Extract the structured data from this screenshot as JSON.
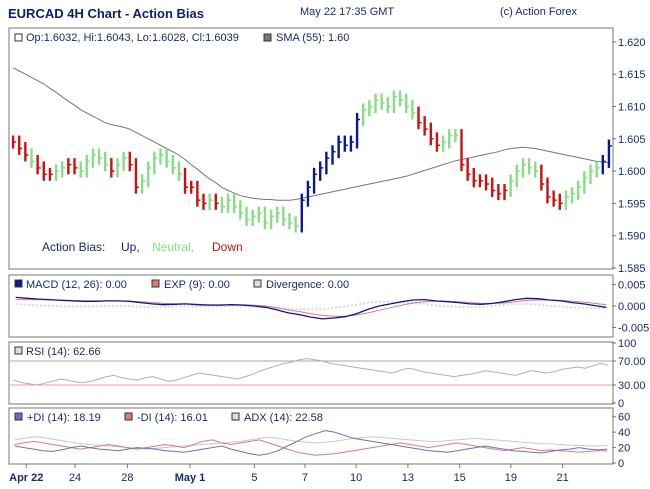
{
  "header": {
    "title": "EURCAD 4H Chart - Action Bias",
    "timestamp": "May 22 17:35 GMT",
    "copyright": "(c) Action Forex"
  },
  "chart_data": [
    {
      "type": "bar",
      "panel": "price",
      "ohlc_label": "Op:1.6032, Hi:1.6043, Lo:1.6028, Cl:1.6039",
      "sma_label": "SMA (55): 1.60",
      "ylim": [
        1.585,
        1.622
      ],
      "ticks": [
        "1.620",
        "1.615",
        "1.610",
        "1.605",
        "1.600",
        "1.595",
        "1.590",
        "1.585"
      ],
      "tick_values": [
        1.62,
        1.615,
        1.61,
        1.605,
        1.6,
        1.595,
        1.59,
        1.585
      ],
      "legend": {
        "label": "Action Bias:",
        "up": "Up,",
        "neutral": "Neutral,",
        "down": "Down"
      },
      "colors": {
        "up": "#0a1a8c",
        "neutral": "#88dd88",
        "down": "#cc1111",
        "sma": "#777777"
      },
      "bias": [
        "D",
        "D",
        "D",
        "N",
        "D",
        "D",
        "D",
        "N",
        "N",
        "D",
        "D",
        "N",
        "N",
        "N",
        "N",
        "N",
        "D",
        "N",
        "N",
        "D",
        "D",
        "N",
        "N",
        "N",
        "N",
        "N",
        "N",
        "N",
        "D",
        "D",
        "D",
        "D",
        "N",
        "D",
        "N",
        "N",
        "N",
        "N",
        "N",
        "N",
        "N",
        "N",
        "N",
        "N",
        "N",
        "N",
        "N",
        "U",
        "U",
        "U",
        "U",
        "U",
        "U",
        "U",
        "U",
        "U",
        "U",
        "N",
        "N",
        "N",
        "N",
        "N",
        "N",
        "N",
        "N",
        "N",
        "D",
        "D",
        "D",
        "D",
        "N",
        "N",
        "N",
        "D",
        "D",
        "D",
        "D",
        "D",
        "D",
        "D",
        "D",
        "N",
        "N",
        "N",
        "N",
        "N",
        "D",
        "D",
        "D",
        "D",
        "N",
        "N",
        "N",
        "N",
        "N",
        "N",
        "U",
        "U"
      ],
      "closes": [
        1.6045,
        1.6035,
        1.6025,
        1.6015,
        1.6005,
        1.5995,
        1.5995,
        1.6,
        1.6005,
        1.601,
        1.6005,
        1.6,
        1.6015,
        1.6025,
        1.602,
        1.601,
        1.6,
        1.601,
        1.602,
        1.601,
        1.5975,
        1.5985,
        1.6005,
        1.602,
        1.6025,
        1.6015,
        1.6005,
        1.5995,
        1.5975,
        1.5975,
        1.5955,
        1.595,
        1.5955,
        1.595,
        1.5945,
        1.5955,
        1.5945,
        1.5935,
        1.5925,
        1.593,
        1.5935,
        1.592,
        1.593,
        1.5935,
        1.5925,
        1.592,
        1.5915,
        1.5955,
        1.5975,
        1.5995,
        1.6005,
        1.602,
        1.603,
        1.6045,
        1.604,
        1.6045,
        1.608,
        1.6095,
        1.61,
        1.611,
        1.6105,
        1.61,
        1.6115,
        1.611,
        1.61,
        1.609,
        1.6075,
        1.6065,
        1.605,
        1.604,
        1.6045,
        1.6055,
        1.6055,
        1.601,
        1.5995,
        1.5985,
        1.5985,
        1.598,
        1.597,
        1.5965,
        1.597,
        1.5985,
        1.6,
        1.601,
        1.6005,
        1.6,
        1.598,
        1.596,
        1.5955,
        1.595,
        1.596,
        1.5965,
        1.5975,
        1.599,
        1.6,
        1.6005,
        1.6015,
        1.6039
      ],
      "sma": [
        1.616,
        1.6155,
        1.615,
        1.6145,
        1.614,
        1.6135,
        1.6128,
        1.6122,
        1.6115,
        1.6108,
        1.6102,
        1.6095,
        1.609,
        1.6085,
        1.608,
        1.6075,
        1.6072,
        1.607,
        1.6068,
        1.6065,
        1.606,
        1.6055,
        1.605,
        1.6045,
        1.604,
        1.6035,
        1.603,
        1.6025,
        1.6018,
        1.601,
        1.6003,
        1.5995,
        1.5988,
        1.5982,
        1.5975,
        1.597,
        1.5966,
        1.5962,
        1.596,
        1.5958,
        1.5957,
        1.5956,
        1.5956,
        1.5955,
        1.5955,
        1.5955,
        1.5956,
        1.5958,
        1.596,
        1.5962,
        1.5964,
        1.5966,
        1.5968,
        1.597,
        1.5972,
        1.5974,
        1.5976,
        1.5978,
        1.598,
        1.5982,
        1.5984,
        1.5986,
        1.5988,
        1.599,
        1.5992,
        1.5995,
        1.5998,
        1.6001,
        1.6004,
        1.6007,
        1.601,
        1.6013,
        1.6016,
        1.6018,
        1.602,
        1.6022,
        1.6024,
        1.6026,
        1.6028,
        1.603,
        1.6033,
        1.6035,
        1.6036,
        1.6037,
        1.6036,
        1.6035,
        1.6033,
        1.6031,
        1.6029,
        1.6027,
        1.6025,
        1.6023,
        1.6021,
        1.6019,
        1.6017,
        1.6015,
        1.6014,
        1.6013
      ]
    },
    {
      "type": "line",
      "panel": "macd",
      "labels": {
        "macd": "MACD (12, 26): 0.00",
        "exp": "EXP (9): 0.00",
        "div": "Divergence: 0.00"
      },
      "ylim": [
        -0.007,
        0.007
      ],
      "ticks": [
        "0.005",
        "0.000",
        "-0.005"
      ],
      "tick_values": [
        0.005,
        0.0,
        -0.005
      ],
      "colors": {
        "macd": "#0a1a8c",
        "exp": "#e07a7a",
        "div": "#d8d8d8"
      },
      "macd": [
        0.002,
        0.0018,
        0.0016,
        0.0015,
        0.0013,
        0.0012,
        0.0011,
        0.0011,
        0.0012,
        0.0012,
        0.0011,
        0.0008,
        0.0005,
        0.0003,
        0.0004,
        0.0005,
        0.0003,
        0.0002,
        0.0002,
        0.0003,
        0.0002,
        0.0,
        -0.0003,
        -0.0009,
        -0.0016,
        -0.002,
        -0.0026,
        -0.003,
        -0.0028,
        -0.0025,
        -0.0018,
        -0.0008,
        0.0,
        0.0005,
        0.001,
        0.0014,
        0.0015,
        0.0012,
        0.001,
        0.0008,
        0.0005,
        0.0004,
        0.0006,
        0.001,
        0.0015,
        0.0018,
        0.0017,
        0.0014,
        0.0012,
        0.0008,
        0.0005,
        0.0001,
        -0.0003
      ],
      "exp": [
        0.0015,
        0.0015,
        0.0015,
        0.0014,
        0.0014,
        0.0013,
        0.0012,
        0.0012,
        0.0012,
        0.0012,
        0.0011,
        0.001,
        0.0008,
        0.0006,
        0.0005,
        0.0005,
        0.0004,
        0.0003,
        0.0003,
        0.0003,
        0.0003,
        0.0002,
        0.0,
        -0.0004,
        -0.0009,
        -0.0013,
        -0.0018,
        -0.0022,
        -0.0024,
        -0.0024,
        -0.0021,
        -0.0016,
        -0.001,
        -0.0004,
        0.0002,
        0.0007,
        0.001,
        0.0011,
        0.0011,
        0.001,
        0.0008,
        0.0006,
        0.0006,
        0.0007,
        0.001,
        0.0013,
        0.0014,
        0.0014,
        0.0013,
        0.0011,
        0.0009,
        0.0006,
        0.0003
      ],
      "div": [
        0.0005,
        0.0003,
        0.0001,
        0.0001,
        -0.0001,
        -0.0001,
        -0.0001,
        -0.0001,
        0.0,
        0.0,
        0.0,
        -0.0002,
        -0.0003,
        -0.0003,
        -0.0001,
        0.0,
        -0.0001,
        -0.0001,
        -0.0001,
        0.0,
        -0.0001,
        -0.0002,
        -0.0003,
        -0.0005,
        -0.0007,
        -0.0007,
        -0.0008,
        -0.0008,
        -0.0004,
        -0.0001,
        0.0003,
        0.0008,
        0.001,
        0.0009,
        0.0008,
        0.0007,
        0.0005,
        0.0001,
        -0.0001,
        -0.0002,
        -0.0003,
        -0.0002,
        0.0,
        0.0003,
        0.0005,
        0.0005,
        0.0003,
        0.0,
        -0.0001,
        -0.0003,
        -0.0004,
        -0.0005,
        -0.0006
      ]
    },
    {
      "type": "line",
      "panel": "rsi",
      "label": "RSI (14): 62.66",
      "ylim": [
        0,
        100
      ],
      "ticks": [
        "100",
        "70.00",
        "30.00",
        "0"
      ],
      "tick_values": [
        100,
        70,
        30,
        0
      ],
      "levels": [
        70,
        30
      ],
      "colors": {
        "rsi": "#b0b0b0",
        "rsi_low": "#e07a7a",
        "level": "#e07a7a"
      },
      "rsi": [
        38,
        34,
        32,
        30,
        33,
        36,
        40,
        38,
        35,
        34,
        36,
        40,
        44,
        46,
        42,
        40,
        38,
        42,
        44,
        40,
        36,
        38,
        42,
        46,
        50,
        48,
        46,
        44,
        42,
        40,
        44,
        48,
        54,
        58,
        62,
        66,
        68,
        72,
        74,
        72,
        70,
        66,
        64,
        62,
        60,
        58,
        56,
        54,
        52,
        50,
        54,
        58,
        56,
        52,
        50,
        48,
        46,
        44,
        46,
        48,
        50,
        54,
        52,
        50,
        48,
        46,
        50,
        54,
        52,
        50,
        52,
        56,
        58,
        60,
        58,
        62,
        66,
        63
      ]
    },
    {
      "type": "line",
      "panel": "dmi",
      "labels": {
        "plus_di": "+DI (14): 18.19",
        "minus_di": "-DI (14): 16.01",
        "adx": "ADX (14): 22.58"
      },
      "ylim": [
        0,
        70
      ],
      "ticks": [
        "60",
        "40",
        "20",
        "0"
      ],
      "tick_values": [
        60,
        40,
        20,
        0
      ],
      "colors": {
        "plus_di": "#6670cc",
        "minus_di": "#e07a7a",
        "adx": "#c8c8c8"
      },
      "plus_di": [
        22,
        20,
        18,
        16,
        15,
        17,
        20,
        22,
        20,
        18,
        17,
        16,
        18,
        20,
        19,
        18,
        16,
        15,
        14,
        16,
        18,
        20,
        22,
        18,
        15,
        12,
        10,
        12,
        16,
        22,
        28,
        34,
        38,
        42,
        40,
        36,
        32,
        30,
        28,
        26,
        24,
        22,
        20,
        18,
        16,
        15,
        14,
        16,
        18,
        20,
        22,
        20,
        18,
        16,
        15,
        14,
        13,
        15,
        17,
        18,
        20,
        18,
        17,
        18
      ],
      "minus_di": [
        24,
        26,
        28,
        26,
        24,
        22,
        20,
        18,
        20,
        22,
        24,
        22,
        20,
        18,
        20,
        22,
        24,
        22,
        20,
        24,
        28,
        30,
        26,
        24,
        26,
        28,
        30,
        26,
        22,
        18,
        14,
        12,
        10,
        11,
        12,
        14,
        16,
        18,
        20,
        22,
        24,
        26,
        24,
        22,
        20,
        22,
        24,
        26,
        24,
        22,
        20,
        18,
        16,
        18,
        20,
        18,
        16,
        17,
        16,
        15,
        14,
        15,
        16,
        16
      ],
      "adx": [
        30,
        32,
        34,
        33,
        31,
        29,
        27,
        25,
        24,
        23,
        22,
        21,
        20,
        19,
        18,
        19,
        20,
        21,
        22,
        23,
        24,
        25,
        26,
        27,
        28,
        30,
        32,
        33,
        32,
        30,
        28,
        27,
        26,
        27,
        28,
        30,
        32,
        33,
        34,
        33,
        32,
        31,
        30,
        29,
        28,
        28,
        29,
        30,
        31,
        32,
        31,
        30,
        29,
        28,
        27,
        26,
        25,
        25,
        24,
        23,
        23,
        22,
        22,
        23
      ]
    }
  ],
  "xaxis": {
    "labels": [
      "Apr 22",
      "24",
      "28",
      "May 1",
      "5",
      "7",
      "10",
      "13",
      "15",
      "19",
      "21"
    ],
    "bold_index": [
      0,
      3
    ],
    "positions": [
      0.027,
      0.108,
      0.195,
      0.299,
      0.406,
      0.49,
      0.575,
      0.661,
      0.747,
      0.832,
      0.918
    ]
  }
}
